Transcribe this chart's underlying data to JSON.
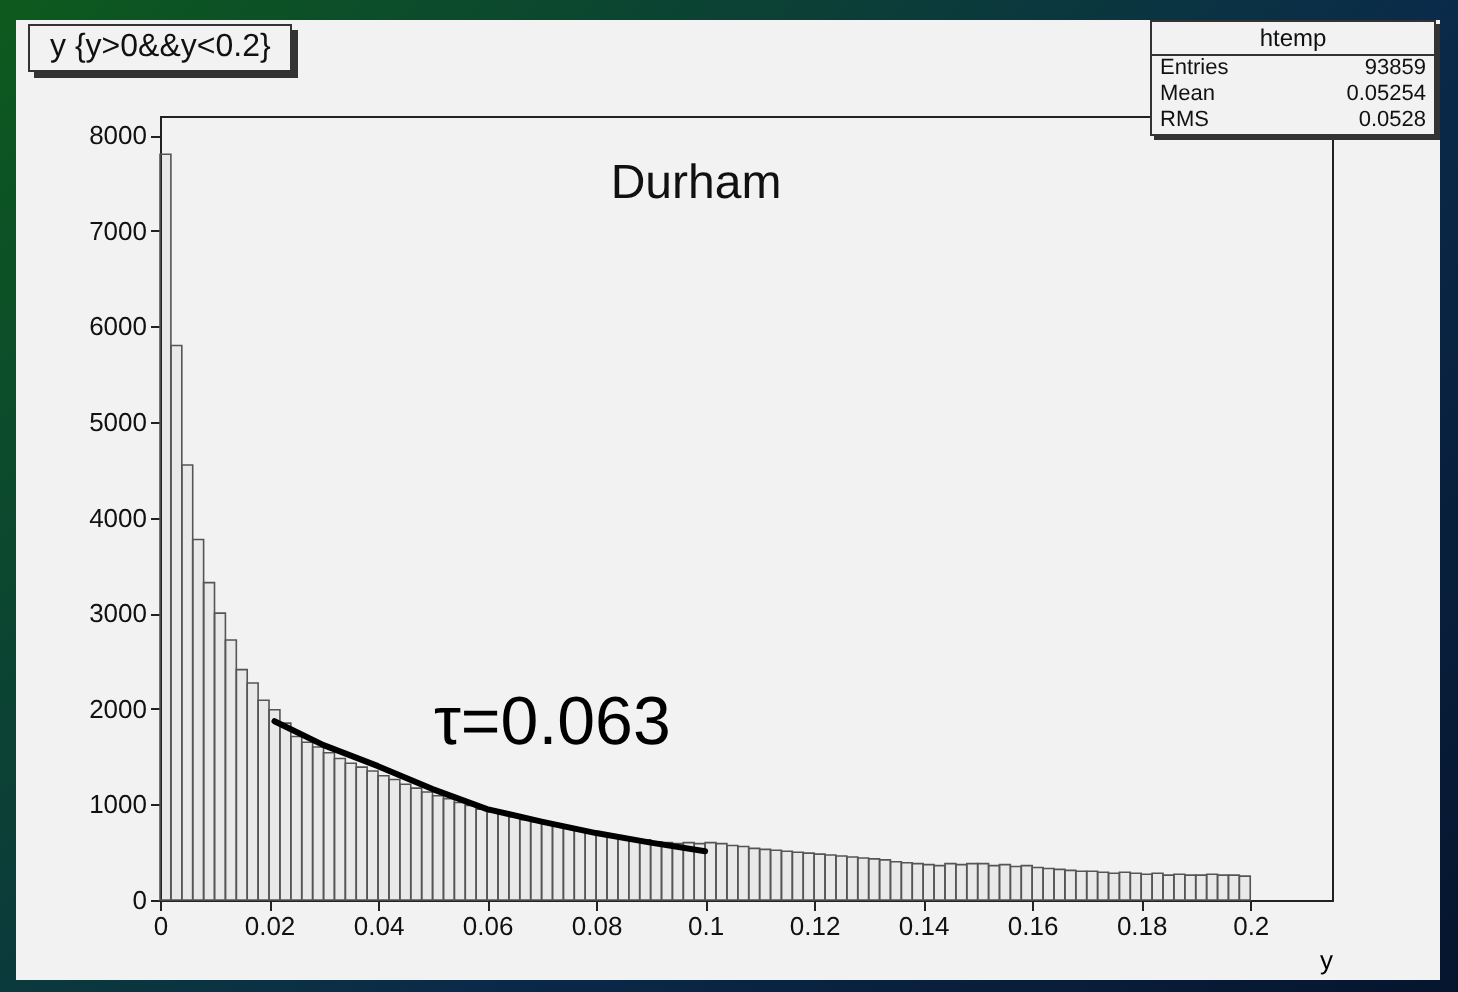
{
  "chart_data": {
    "type": "histogram",
    "title": "y {y>0&&y<0.2}",
    "xlabel": "y",
    "bins": [
      0,
      0.002,
      0.004,
      0.006,
      0.008,
      0.01,
      0.012,
      0.014,
      0.016,
      0.018,
      0.02,
      0.022,
      0.024,
      0.026,
      0.028,
      0.03,
      0.032,
      0.034,
      0.036,
      0.038,
      0.04,
      0.042,
      0.044,
      0.046,
      0.048,
      0.05,
      0.052,
      0.054,
      0.056,
      0.058,
      0.06,
      0.062,
      0.064,
      0.066,
      0.068,
      0.07,
      0.072,
      0.074,
      0.076,
      0.078,
      0.08,
      0.082,
      0.084,
      0.086,
      0.088,
      0.09,
      0.092,
      0.094,
      0.096,
      0.098,
      0.1,
      0.102,
      0.104,
      0.106,
      0.108,
      0.11,
      0.112,
      0.114,
      0.116,
      0.118,
      0.12,
      0.122,
      0.124,
      0.126,
      0.128,
      0.13,
      0.132,
      0.134,
      0.136,
      0.138,
      0.14,
      0.142,
      0.144,
      0.146,
      0.148,
      0.15,
      0.152,
      0.154,
      0.156,
      0.158,
      0.16,
      0.162,
      0.164,
      0.166,
      0.168,
      0.17,
      0.172,
      0.174,
      0.176,
      0.178,
      0.18,
      0.182,
      0.184,
      0.186,
      0.188,
      0.19,
      0.192,
      0.194,
      0.196,
      0.198,
      0.2
    ],
    "values": [
      7800,
      5800,
      4550,
      3770,
      3320,
      3000,
      2720,
      2410,
      2270,
      2090,
      1990,
      1850,
      1710,
      1650,
      1600,
      1540,
      1480,
      1430,
      1390,
      1350,
      1300,
      1260,
      1210,
      1170,
      1130,
      1090,
      1060,
      1020,
      990,
      950,
      920,
      900,
      870,
      840,
      820,
      800,
      780,
      760,
      740,
      710,
      690,
      670,
      660,
      640,
      630,
      610,
      600,
      590,
      600,
      590,
      600,
      590,
      570,
      560,
      540,
      530,
      520,
      510,
      500,
      490,
      480,
      470,
      460,
      450,
      440,
      430,
      420,
      400,
      390,
      380,
      370,
      360,
      380,
      370,
      380,
      380,
      360,
      370,
      350,
      360,
      340,
      330,
      320,
      310,
      300,
      300,
      290,
      280,
      290,
      280,
      270,
      280,
      260,
      270,
      260,
      260,
      270,
      260,
      260,
      250
    ],
    "color": "#555555",
    "series": [
      {
        "name": "τ=0.063",
        "type": "line",
        "color": "#000000",
        "x": [
          0.021,
          0.03,
          0.04,
          0.05,
          0.06,
          0.07,
          0.08,
          0.09,
          0.1
        ],
        "values": [
          1870,
          1620,
          1400,
          1160,
          950,
          820,
          700,
          600,
          510
        ]
      }
    ],
    "xlim": [
      0,
      0.215
    ],
    "ylim": [
      0,
      8200
    ],
    "xticks": [
      0,
      0.02,
      0.04,
      0.06,
      0.08,
      0.1,
      0.12,
      0.14,
      0.16,
      0.18,
      0.2
    ],
    "yticks": [
      0,
      1000,
      2000,
      3000,
      4000,
      5000,
      6000,
      7000,
      8000
    ],
    "annotations": [
      "Durham",
      "htemp",
      "Entries 93859",
      "Mean 0.05254",
      "RMS 0.0528"
    ]
  }
}
